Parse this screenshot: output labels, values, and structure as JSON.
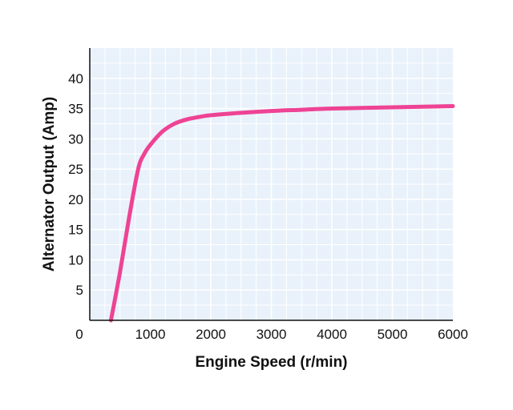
{
  "chart_data": {
    "type": "line",
    "title": "",
    "xlabel": "Engine Speed (r/min)",
    "ylabel": "Alternator Output (Amp)",
    "xlim": [
      0,
      6000
    ],
    "ylim": [
      0,
      45
    ],
    "x_ticks": [
      0,
      1000,
      2000,
      3000,
      4000,
      5000,
      6000
    ],
    "y_ticks": [
      5,
      10,
      15,
      20,
      25,
      30,
      35,
      40
    ],
    "x_tick_labels": [
      "0",
      "1000",
      "2000",
      "3000",
      "4000",
      "5000",
      "6000"
    ],
    "y_tick_labels": [
      "5",
      "10",
      "15",
      "20",
      "25",
      "30",
      "35",
      "40"
    ],
    "grid": true,
    "legend": "none",
    "colors": {
      "series": "#ee4394",
      "plot_background": "#e9f2fb",
      "grid": "#ffffff",
      "axis": "#111111"
    },
    "series": [
      {
        "x": [
          350,
          500,
          650,
          800,
          900,
          1000,
          1200,
          1400,
          1600,
          1800,
          2000,
          2500,
          3000,
          3500,
          4000,
          4500,
          5000,
          5500,
          6000
        ],
        "y": [
          0,
          8,
          17,
          25,
          27.5,
          29,
          31.2,
          32.5,
          33.2,
          33.6,
          33.9,
          34.3,
          34.6,
          34.8,
          35.0,
          35.1,
          35.2,
          35.3,
          35.4
        ]
      }
    ]
  }
}
